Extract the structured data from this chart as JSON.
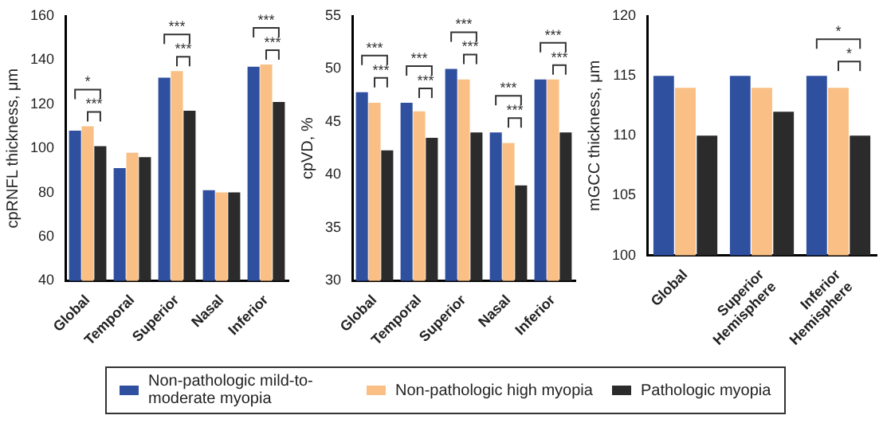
{
  "chart_data": [
    {
      "type": "bar",
      "ylabel": "cpRNFL thickness, μm",
      "categories": [
        "Global",
        "Temporal",
        "Superior",
        "Nasal",
        "Inferior"
      ],
      "series": [
        {
          "name": "Non-pathologic mild-to-moderate myopia",
          "color": "#2f4f9f",
          "values": [
            108,
            91,
            132,
            81,
            137
          ]
        },
        {
          "name": "Non-pathologic high myopia",
          "color": "#f9bf85",
          "values": [
            110,
            98,
            135,
            80,
            138
          ]
        },
        {
          "name": "Pathologic myopia",
          "color": "#2b2b2b",
          "values": [
            101,
            96,
            117,
            80,
            121
          ]
        }
      ],
      "ylim": [
        40,
        160
      ],
      "yticks": [
        40,
        60,
        80,
        100,
        120,
        140,
        160
      ],
      "grid": false,
      "legend": "bottom",
      "annotations": [
        "*",
        "***",
        "***",
        "***",
        "***",
        "***"
      ]
    },
    {
      "type": "bar",
      "ylabel": "cpVD, %",
      "categories": [
        "Global",
        "Temporal",
        "Superior",
        "Nasal",
        "Inferior"
      ],
      "series": [
        {
          "color": "#2f4f9f",
          "values": [
            47.8,
            46.8,
            50,
            44,
            49
          ]
        },
        {
          "color": "#f9bf85",
          "values": [
            46.8,
            46,
            49,
            43,
            49
          ]
        },
        {
          "color": "#2b2b2b",
          "values": [
            42.3,
            43.5,
            44,
            39,
            44
          ]
        }
      ],
      "ylim": [
        30,
        55
      ],
      "yticks": [
        30,
        35,
        40,
        45,
        50,
        55
      ],
      "grid": false,
      "annotations": [
        "***",
        "***",
        "***",
        "***",
        "***",
        "***",
        "***",
        "***",
        "***",
        "***"
      ]
    },
    {
      "type": "bar",
      "ylabel": "mGCC thickness, μm",
      "categories": [
        "Global",
        "Superior Hemisphere",
        "Inferior Hemisphere"
      ],
      "series": [
        {
          "color": "#2f4f9f",
          "values": [
            115,
            115,
            115
          ]
        },
        {
          "color": "#f9bf85",
          "values": [
            114,
            114,
            114
          ]
        },
        {
          "color": "#2b2b2b",
          "values": [
            110,
            112,
            110
          ]
        }
      ],
      "ylim": [
        100,
        120
      ],
      "yticks": [
        100,
        105,
        110,
        115,
        120
      ],
      "grid": false,
      "annotations": [
        "*",
        "*"
      ]
    }
  ]
}
